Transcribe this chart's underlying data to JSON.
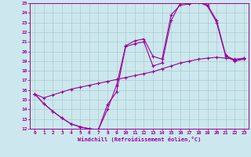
{
  "xlabel": "Windchill (Refroidissement éolien,°C)",
  "bg_color": "#cce8ee",
  "grid_color": "#aacccc",
  "line_color": "#990099",
  "xlim": [
    -0.5,
    23.5
  ],
  "ylim": [
    12,
    25
  ],
  "xticks": [
    0,
    1,
    2,
    3,
    4,
    5,
    6,
    7,
    8,
    9,
    10,
    11,
    12,
    13,
    14,
    15,
    16,
    17,
    18,
    19,
    20,
    21,
    22,
    23
  ],
  "yticks": [
    12,
    13,
    14,
    15,
    16,
    17,
    18,
    19,
    20,
    21,
    22,
    23,
    24,
    25
  ],
  "line1_x": [
    0,
    1,
    2,
    3,
    4,
    5,
    6,
    7,
    8,
    9,
    10,
    11,
    12,
    13,
    14,
    15,
    16,
    17,
    18,
    19,
    20,
    21,
    22,
    23
  ],
  "line1_y": [
    15.6,
    14.6,
    13.8,
    13.1,
    12.5,
    12.2,
    12.0,
    11.9,
    14.5,
    15.8,
    20.5,
    20.8,
    21.0,
    18.5,
    18.8,
    23.2,
    25.0,
    25.0,
    25.1,
    24.7,
    23.0,
    19.5,
    19.0,
    19.2
  ],
  "line2_x": [
    0,
    1,
    2,
    3,
    4,
    5,
    6,
    7,
    8,
    9,
    10,
    11,
    12,
    13,
    14,
    15,
    16,
    17,
    18,
    19,
    20,
    21,
    22,
    23
  ],
  "line2_y": [
    15.6,
    14.6,
    13.8,
    13.1,
    12.5,
    12.2,
    12.0,
    11.9,
    14.0,
    16.5,
    20.6,
    21.1,
    21.3,
    19.5,
    19.2,
    23.8,
    24.8,
    24.9,
    25.2,
    24.8,
    23.2,
    19.6,
    19.1,
    19.3
  ],
  "line3_x": [
    0,
    1,
    2,
    3,
    4,
    5,
    6,
    7,
    8,
    9,
    10,
    11,
    12,
    13,
    14,
    15,
    16,
    17,
    18,
    19,
    20,
    21,
    22,
    23
  ],
  "line3_y": [
    15.6,
    15.2,
    15.5,
    15.8,
    16.1,
    16.3,
    16.5,
    16.7,
    16.9,
    17.1,
    17.3,
    17.5,
    17.7,
    17.9,
    18.2,
    18.5,
    18.8,
    19.0,
    19.2,
    19.3,
    19.4,
    19.3,
    19.2,
    19.3
  ]
}
